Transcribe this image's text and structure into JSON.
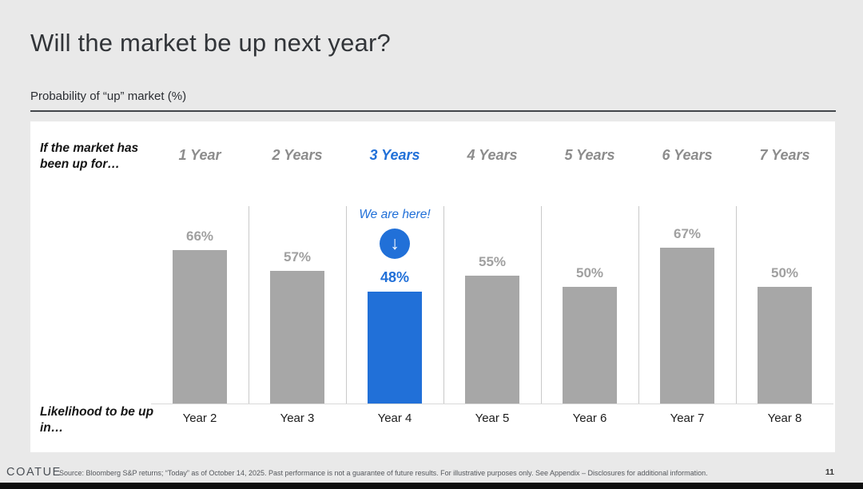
{
  "slide": {
    "title": "Will the market be up next year?",
    "subtitle": "Probability of “up” market (%)"
  },
  "chart": {
    "row_header_top": "If the market has been up for…",
    "row_header_bottom": "Likelihood to be up in…",
    "annotation_text": "We are here!",
    "annotation_icon": "down-arrow-circle-icon",
    "annotation_arrow_glyph": "↓",
    "columns": [
      {
        "header": "1 Year",
        "value_label": "66%",
        "bottom_label": "Year 2"
      },
      {
        "header": "2 Years",
        "value_label": "57%",
        "bottom_label": "Year 3"
      },
      {
        "header": "3 Years",
        "value_label": "48%",
        "bottom_label": "Year 4"
      },
      {
        "header": "4 Years",
        "value_label": "55%",
        "bottom_label": "Year 5"
      },
      {
        "header": "5 Years",
        "value_label": "50%",
        "bottom_label": "Year 6"
      },
      {
        "header": "6 Years",
        "value_label": "67%",
        "bottom_label": "Year 7"
      },
      {
        "header": "7 Years",
        "value_label": "50%",
        "bottom_label": "Year 8"
      }
    ]
  },
  "chart_data": {
    "type": "bar",
    "title": "Probability of “up” market (%)",
    "categories": [
      "1 Year",
      "2 Years",
      "3 Years",
      "4 Years",
      "5 Years",
      "6 Years",
      "7 Years"
    ],
    "bottom_labels": [
      "Year 2",
      "Year 3",
      "Year 4",
      "Year 5",
      "Year 6",
      "Year 7",
      "Year 8"
    ],
    "values": [
      66,
      57,
      48,
      55,
      50,
      67,
      50
    ],
    "unit": "%",
    "ylim": [
      0,
      100
    ],
    "grid": false,
    "highlighted_index": 2,
    "annotation": {
      "text": "We are here!",
      "target_category": "3 Years"
    },
    "bar_color": "#a7a7a7",
    "highlight_color": "#2170d8"
  },
  "footer": {
    "brand": "COATUE",
    "source": "Source: Bloomberg S&P returns; “Today” as of October 14, 2025. Past performance is not a guarantee of future results.  For illustrative purposes only. See Appendix – Disclosures for additional information.",
    "page_number": "11"
  },
  "colors": {
    "accent_blue": "#2170d8",
    "bar_gray": "#a7a7a7",
    "background": "#e9e9e9",
    "panel": "#ffffff"
  }
}
